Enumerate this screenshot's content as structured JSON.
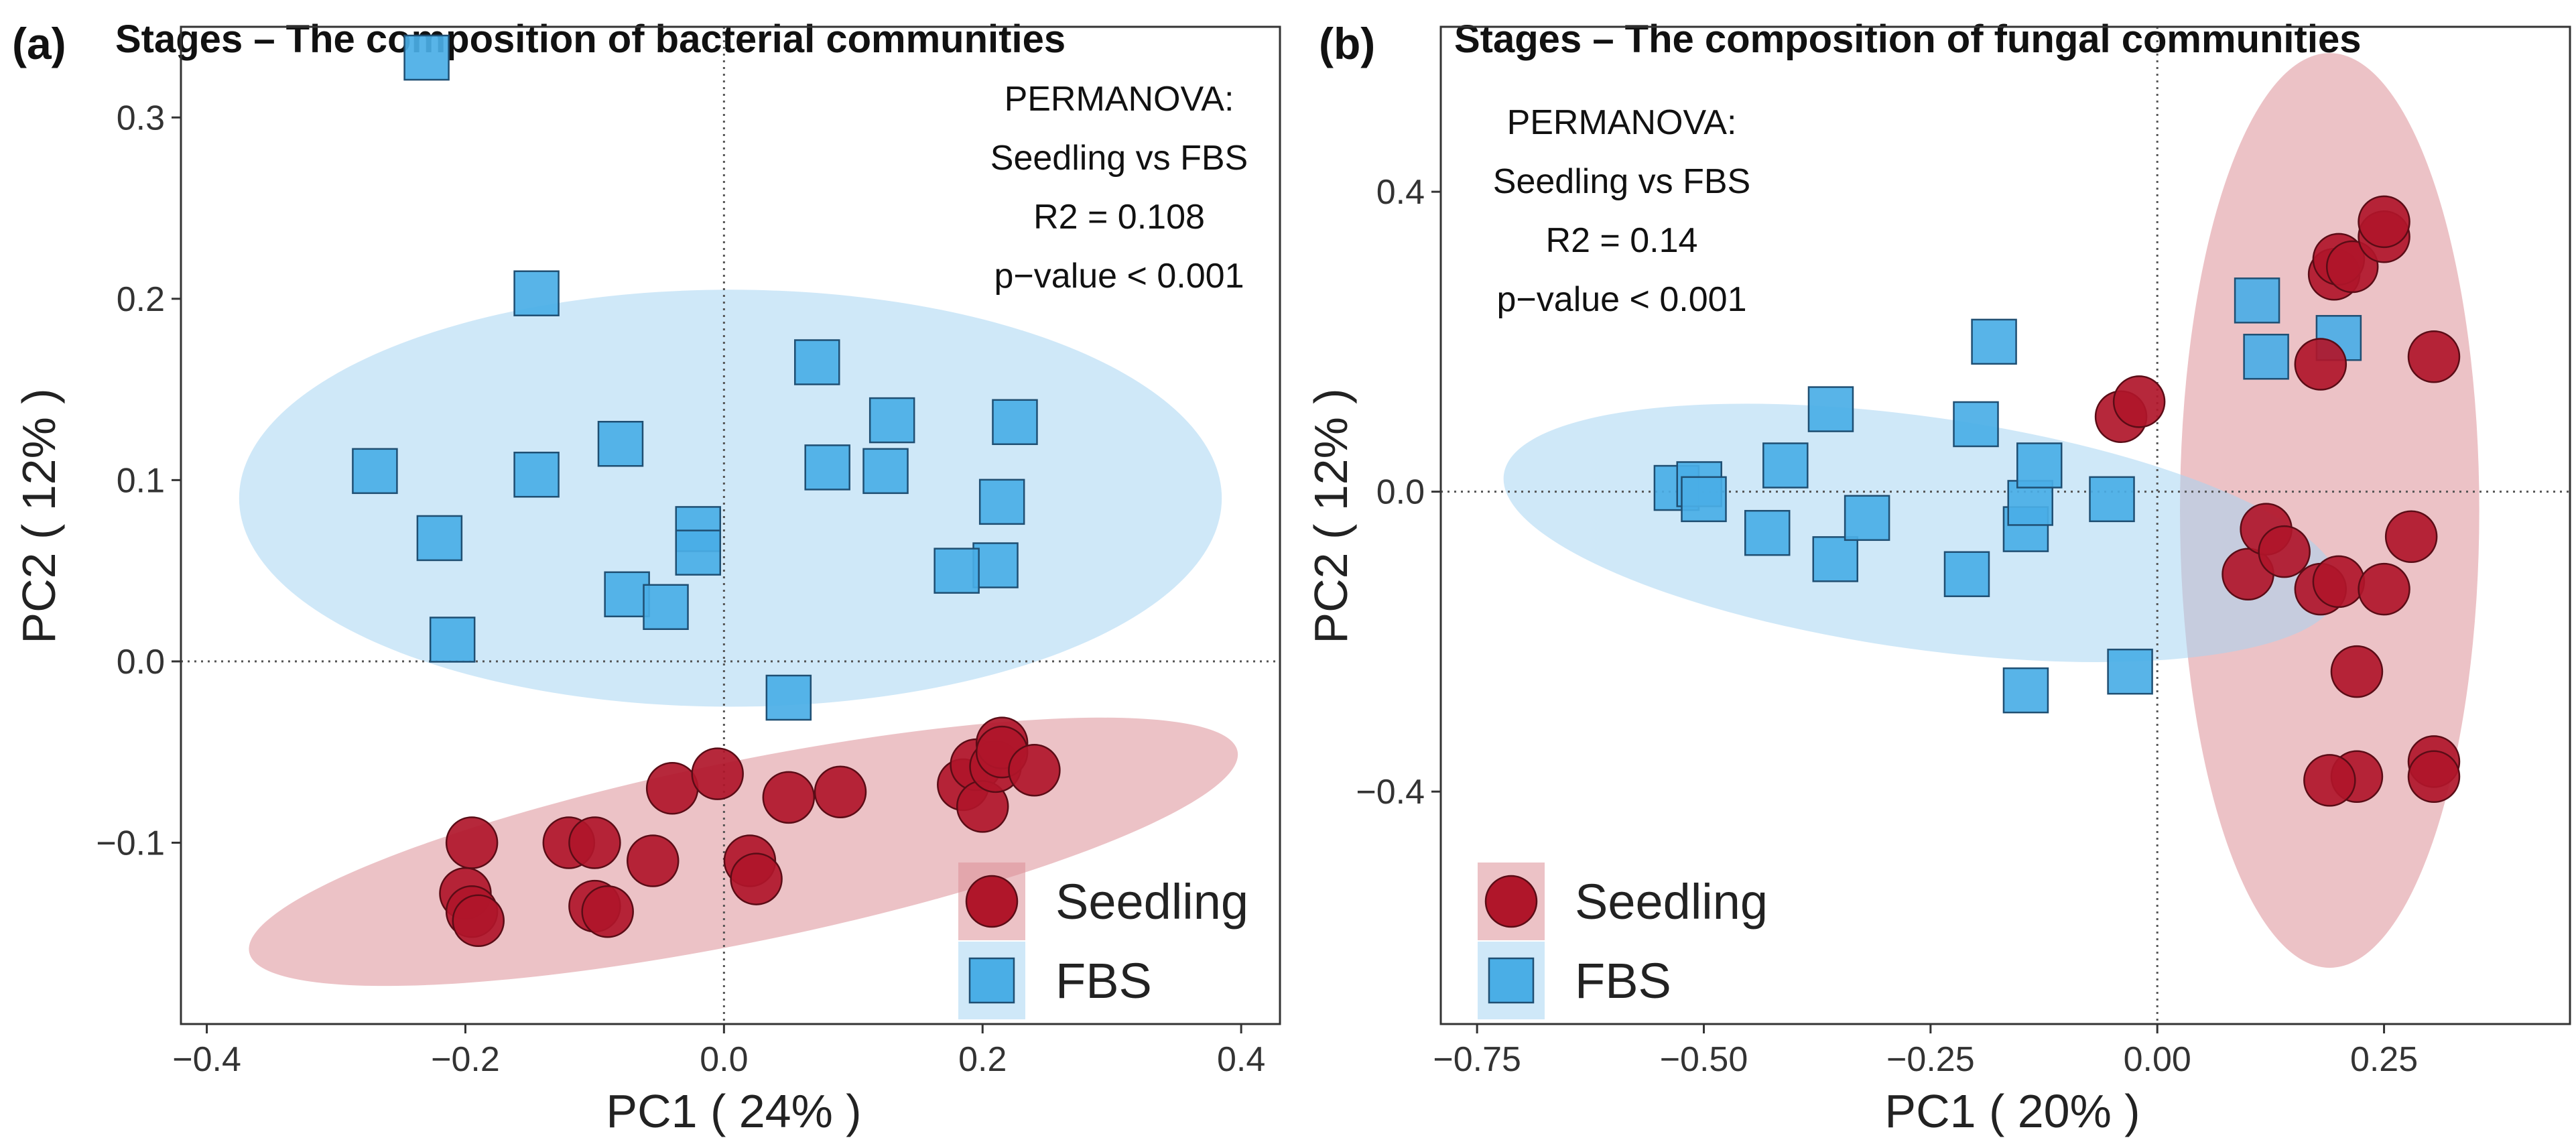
{
  "chart_data": [
    {
      "type": "scatter",
      "panel_tag": "(a)",
      "title": "Stages – The composition of bacterial communities",
      "xlabel": "PC1 ( 24% )",
      "ylabel": "PC2 ( 12% )",
      "xlim": [
        -0.42,
        0.43
      ],
      "ylim": [
        -0.2,
        0.35
      ],
      "xticks": [
        -0.4,
        -0.2,
        0.0,
        0.2,
        0.4
      ],
      "xtick_labels": [
        "−0.4",
        "−0.2",
        "0.0",
        "0.2",
        "0.4"
      ],
      "yticks": [
        -0.1,
        0.0,
        0.1,
        0.2,
        0.3
      ],
      "ytick_labels": [
        "−0.1",
        "0.0",
        "0.1",
        "0.2",
        "0.3"
      ],
      "reference_lines": {
        "x": 0,
        "y": 0,
        "style": "dotted"
      },
      "annotation": [
        "PERMANOVA:",
        "Seedling vs FBS",
        "R2 = 0.108",
        "p−value < 0.001"
      ],
      "annotation_position": "top-right",
      "legend_position": "bottom-right",
      "series": [
        {
          "name": "Seedling",
          "marker": "circle",
          "color": "#b0162a",
          "ellipse": {
            "center": [
              0.015,
              -0.105
            ],
            "semi_axes": [
              0.39,
              0.05
            ],
            "angle_deg": 11.5,
            "color": "#dd8f97"
          },
          "points": [
            [
              -0.195,
              -0.1
            ],
            [
              -0.2,
              -0.128
            ],
            [
              -0.195,
              -0.138
            ],
            [
              -0.19,
              -0.143
            ],
            [
              -0.12,
              -0.1
            ],
            [
              -0.1,
              -0.1
            ],
            [
              -0.1,
              -0.135
            ],
            [
              -0.09,
              -0.138
            ],
            [
              -0.055,
              -0.11
            ],
            [
              -0.04,
              -0.07
            ],
            [
              -0.005,
              -0.062
            ],
            [
              0.02,
              -0.11
            ],
            [
              0.025,
              -0.12
            ],
            [
              0.05,
              -0.075
            ],
            [
              0.09,
              -0.072
            ],
            [
              0.185,
              -0.068
            ],
            [
              0.195,
              -0.057
            ],
            [
              0.2,
              -0.08
            ],
            [
              0.21,
              -0.058
            ],
            [
              0.215,
              -0.045
            ],
            [
              0.215,
              -0.05
            ],
            [
              0.24,
              -0.06
            ]
          ]
        },
        {
          "name": "FBS",
          "marker": "square",
          "color": "#4aaee6",
          "ellipse": {
            "center": [
              0.005,
              0.09
            ],
            "semi_axes": [
              0.38,
              0.115
            ],
            "angle_deg": 0,
            "color": "#a8d6f2"
          },
          "points": [
            [
              -0.23,
              0.333
            ],
            [
              -0.145,
              0.203
            ],
            [
              -0.27,
              0.105
            ],
            [
              -0.145,
              0.103
            ],
            [
              -0.22,
              0.068
            ],
            [
              -0.21,
              0.012
            ],
            [
              -0.08,
              0.12
            ],
            [
              -0.075,
              0.037
            ],
            [
              -0.045,
              0.03
            ],
            [
              -0.02,
              0.073
            ],
            [
              -0.02,
              0.06
            ],
            [
              0.05,
              -0.02
            ],
            [
              0.072,
              0.165
            ],
            [
              0.08,
              0.107
            ],
            [
              0.125,
              0.105
            ],
            [
              0.13,
              0.133
            ],
            [
              0.215,
              0.088
            ],
            [
              0.21,
              0.053
            ],
            [
              0.18,
              0.05
            ],
            [
              0.225,
              0.132
            ]
          ]
        }
      ]
    },
    {
      "type": "scatter",
      "panel_tag": "(b)",
      "title": "Stages – The composition of fungal communities",
      "xlabel": "PC1 ( 20% )",
      "ylabel": "PC2 ( 12% )",
      "xlim": [
        -0.79,
        0.455
      ],
      "ylim": [
        -0.71,
        0.62
      ],
      "xticks": [
        -0.75,
        -0.5,
        -0.25,
        0.0,
        0.25
      ],
      "xtick_labels": [
        "−0.75",
        "−0.50",
        "−0.25",
        "0.00",
        "0.25"
      ],
      "yticks": [
        -0.4,
        0.0,
        0.4
      ],
      "ytick_labels": [
        "−0.4",
        "0.0",
        "0.4"
      ],
      "reference_lines": {
        "x": 0,
        "y": 0,
        "style": "dotted"
      },
      "annotation": [
        "PERMANOVA:",
        "Seedling vs FBS",
        "R2 = 0.14",
        "p−value < 0.001"
      ],
      "annotation_position": "top-left",
      "legend_position": "bottom-left",
      "series": [
        {
          "name": "Seedling",
          "marker": "circle",
          "color": "#b0162a",
          "ellipse": {
            "center": [
              0.19,
              -0.025
            ],
            "semi_axes": [
              0.165,
              0.61
            ],
            "angle_deg": 0,
            "color": "#dd8f97"
          },
          "points": [
            [
              -0.04,
              0.1
            ],
            [
              -0.02,
              0.12
            ],
            [
              0.1,
              -0.11
            ],
            [
              0.12,
              -0.05
            ],
            [
              0.14,
              -0.08
            ],
            [
              0.18,
              0.17
            ],
            [
              0.18,
              -0.13
            ],
            [
              0.195,
              0.29
            ],
            [
              0.2,
              0.31
            ],
            [
              0.2,
              -0.12
            ],
            [
              0.215,
              0.3
            ],
            [
              0.22,
              -0.24
            ],
            [
              0.22,
              -0.38
            ],
            [
              0.19,
              -0.385
            ],
            [
              0.25,
              0.34
            ],
            [
              0.25,
              0.36
            ],
            [
              0.25,
              -0.13
            ],
            [
              0.28,
              -0.06
            ],
            [
              0.305,
              0.18
            ],
            [
              0.305,
              -0.36
            ],
            [
              0.305,
              -0.38
            ]
          ]
        },
        {
          "name": "FBS",
          "marker": "square",
          "color": "#4aaee6",
          "ellipse": {
            "center": [
              -0.26,
              -0.055
            ],
            "semi_axes": [
              0.465,
              0.155
            ],
            "angle_deg": -8,
            "color": "#a8d6f2"
          },
          "points": [
            [
              -0.53,
              0.005
            ],
            [
              -0.505,
              0.01
            ],
            [
              -0.5,
              -0.01
            ],
            [
              -0.41,
              0.035
            ],
            [
              -0.43,
              -0.055
            ],
            [
              -0.36,
              0.11
            ],
            [
              -0.355,
              -0.09
            ],
            [
              -0.32,
              -0.035
            ],
            [
              -0.2,
              0.09
            ],
            [
              -0.18,
              0.2
            ],
            [
              -0.21,
              -0.11
            ],
            [
              -0.145,
              -0.05
            ],
            [
              -0.14,
              -0.015
            ],
            [
              -0.13,
              0.035
            ],
            [
              -0.145,
              -0.265
            ],
            [
              -0.05,
              -0.01
            ],
            [
              -0.03,
              -0.24
            ],
            [
              0.11,
              0.255
            ],
            [
              0.12,
              0.18
            ],
            [
              0.2,
              0.205
            ]
          ]
        }
      ]
    }
  ]
}
